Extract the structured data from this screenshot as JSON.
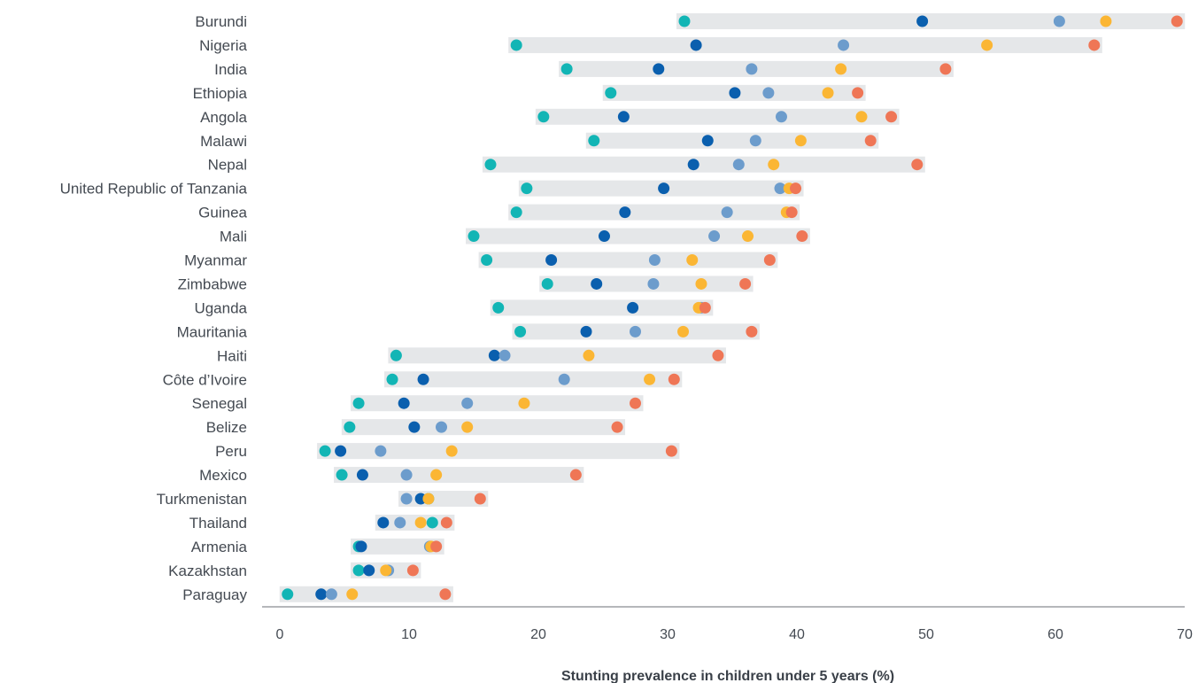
{
  "chart_data": {
    "type": "scatter",
    "subtype": "dumbbell-range",
    "title": "",
    "xlabel": "Stunting prevalence in children under 5 years (%)",
    "ylabel": "",
    "xlim": [
      0,
      70
    ],
    "xticks": [
      0,
      10,
      20,
      30,
      40,
      50,
      60,
      70
    ],
    "grid": false,
    "legend": "none",
    "range_bar_color": "#e5e7e9",
    "series_colors": [
      "#12b5b5",
      "#0a5fae",
      "#6c9ccc",
      "#fbb634",
      "#ef7656"
    ],
    "countries": [
      {
        "name": "Burundi",
        "values": [
          31.3,
          49.7,
          60.3,
          63.9,
          69.4
        ]
      },
      {
        "name": "Nigeria",
        "values": [
          18.3,
          32.2,
          43.6,
          54.7,
          63.0
        ]
      },
      {
        "name": "India",
        "values": [
          22.2,
          29.3,
          36.5,
          43.4,
          51.5
        ]
      },
      {
        "name": "Ethiopia",
        "values": [
          25.6,
          35.2,
          37.8,
          42.4,
          44.7
        ]
      },
      {
        "name": "Angola",
        "values": [
          20.4,
          26.6,
          38.8,
          45.0,
          47.3
        ]
      },
      {
        "name": "Malawi",
        "values": [
          24.3,
          33.1,
          36.8,
          40.3,
          45.7
        ]
      },
      {
        "name": "Nepal",
        "values": [
          16.3,
          32.0,
          35.5,
          38.2,
          49.3
        ]
      },
      {
        "name": "United Republic of Tanzania",
        "values": [
          19.1,
          29.7,
          38.7,
          39.4,
          39.9
        ]
      },
      {
        "name": "Guinea",
        "values": [
          18.3,
          26.7,
          34.6,
          39.2,
          39.6
        ]
      },
      {
        "name": "Mali",
        "values": [
          15.0,
          25.1,
          33.6,
          36.2,
          40.4
        ]
      },
      {
        "name": "Myanmar",
        "values": [
          16.0,
          21.0,
          29.0,
          31.9,
          37.9
        ]
      },
      {
        "name": "Zimbabwe",
        "values": [
          20.7,
          24.5,
          28.9,
          32.6,
          36.0
        ]
      },
      {
        "name": "Uganda",
        "values": [
          16.9,
          27.3,
          32.6,
          32.4,
          32.9
        ]
      },
      {
        "name": "Mauritania",
        "values": [
          18.6,
          23.7,
          27.5,
          31.2,
          36.5
        ]
      },
      {
        "name": "Haiti",
        "values": [
          9.0,
          16.6,
          17.4,
          23.9,
          33.9
        ]
      },
      {
        "name": "Côte d’Ivoire",
        "values": [
          8.7,
          11.1,
          22.0,
          28.6,
          30.5
        ]
      },
      {
        "name": "Senegal",
        "values": [
          6.1,
          9.6,
          14.5,
          18.9,
          27.5
        ]
      },
      {
        "name": "Belize",
        "values": [
          5.4,
          10.4,
          12.5,
          14.5,
          26.1
        ]
      },
      {
        "name": "Peru",
        "values": [
          3.5,
          4.7,
          7.8,
          13.3,
          30.3
        ]
      },
      {
        "name": "Mexico",
        "values": [
          4.8,
          6.4,
          9.8,
          12.1,
          22.9
        ]
      },
      {
        "name": "Turkmenistan",
        "values": [
          11.5,
          10.9,
          9.8,
          11.5,
          15.5
        ]
      },
      {
        "name": "Thailand",
        "values": [
          11.8,
          8.0,
          9.3,
          10.9,
          12.9
        ]
      },
      {
        "name": "Armenia",
        "values": [
          6.1,
          6.3,
          11.6,
          11.7,
          12.1
        ]
      },
      {
        "name": "Kazakhstan",
        "values": [
          6.1,
          6.9,
          8.4,
          8.2,
          10.3
        ]
      },
      {
        "name": "Paraguay",
        "values": [
          0.6,
          3.2,
          4.0,
          5.6,
          12.8
        ]
      }
    ]
  }
}
